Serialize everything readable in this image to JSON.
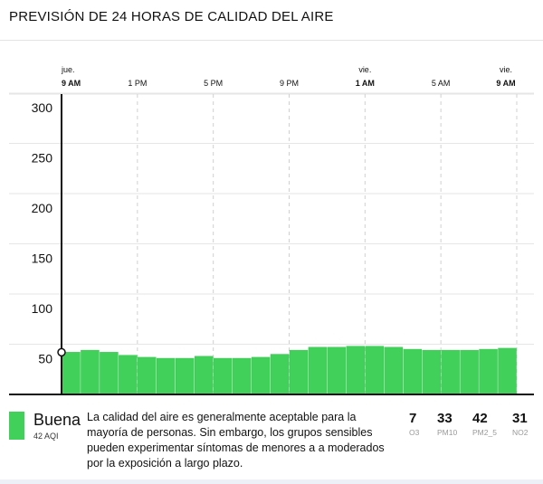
{
  "title": "PREVISIÓN DE 24 HORAS DE CALIDAD DEL AIRE",
  "chart_data": {
    "type": "bar",
    "title": "PREVISIÓN DE 24 HORAS DE CALIDAD DEL AIRE",
    "ylim": [
      0,
      300
    ],
    "yticks": [
      "50",
      "100",
      "150",
      "200",
      "250",
      "300"
    ],
    "ytick_values": [
      50,
      100,
      150,
      200,
      250,
      300
    ],
    "xticks": [
      {
        "day": "jue.",
        "time": "9 AM",
        "bold": true
      },
      {
        "day": "",
        "time": "1 PM"
      },
      {
        "day": "",
        "time": "5 PM"
      },
      {
        "day": "",
        "time": "9 PM"
      },
      {
        "day": "vie.",
        "time": "1 AM",
        "bold": true
      },
      {
        "day": "",
        "time": "5 AM"
      },
      {
        "day": "vie.",
        "time": "9 AM",
        "bold": true
      }
    ],
    "values": [
      42,
      44,
      42,
      39,
      37,
      36,
      36,
      38,
      36,
      36,
      37,
      40,
      44,
      47,
      47,
      48,
      48,
      47,
      45,
      44,
      44,
      44,
      45,
      46
    ],
    "bar_color": "#41d15a",
    "current_value": 42
  },
  "legend": {
    "category": "Buena",
    "aqi": "42 AQI",
    "color": "#41d15a",
    "description": "La calidad del aire es generalmente aceptable para la mayoría de personas. Sin embargo, los grupos sensibles pueden experimentar síntomas de menores a a moderados por la exposición a largo plazo.",
    "pollutants": [
      {
        "value": "7",
        "name": "O3"
      },
      {
        "value": "33",
        "name": "PM10"
      },
      {
        "value": "42",
        "name": "PM2_5"
      },
      {
        "value": "31",
        "name": "NO2"
      }
    ]
  }
}
